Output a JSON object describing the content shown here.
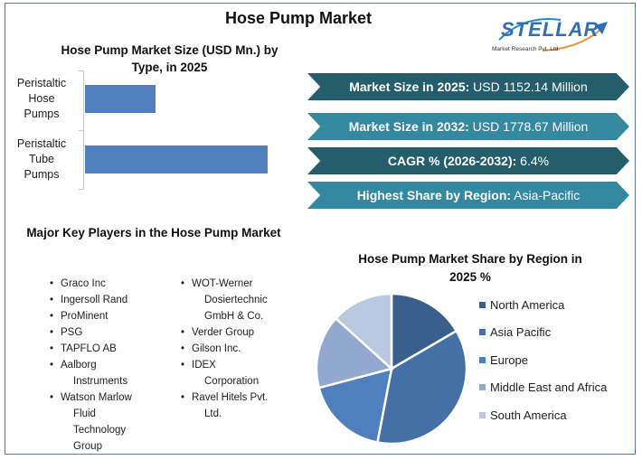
{
  "title": "Hose Pump Market",
  "logo": {
    "word": "STELLAR",
    "subtitle": "Market Research Pvt. Ltd.",
    "icon": "rising-arrow-icon"
  },
  "bar_chart": {
    "title_line1": "Hose Pump Market Size (USD Mn.) by",
    "title_line2": "Type, in 2025",
    "categories": [
      {
        "line1": "Peristaltic",
        "line2": "Hose",
        "line3": "Pumps"
      },
      {
        "line1": "Peristaltic",
        "line2": "Tube",
        "line3": "Pumps"
      }
    ]
  },
  "stats": [
    {
      "label": "Market Size in 2025:",
      "value": " USD 1152.14 Million"
    },
    {
      "label": "Market Size in 2032:",
      "value": " USD 1778.67 Million"
    },
    {
      "label": "CAGR % (2026-2032):",
      "value": " 6.4%"
    },
    {
      "label": "Highest Share by Region:",
      "value": " Asia-Pacific"
    }
  ],
  "players": {
    "title": "Major Key Players in the Hose Pump Market",
    "col1": [
      {
        "l1": "Graco Inc"
      },
      {
        "l1": "Ingersoll Rand"
      },
      {
        "l1": "ProMinent"
      },
      {
        "l1": "PSG"
      },
      {
        "l1": "TAPFLO AB"
      },
      {
        "l1": "Aalborg",
        "l2": "Instruments"
      },
      {
        "l1": "Watson Marlow",
        "l2": "Fluid",
        "l3": "Technology",
        "l4": "Group"
      }
    ],
    "col2": [
      {
        "l1": "WOT-Werner",
        "l2": "Dosiertechnic",
        "l3": "GmbH & Co."
      },
      {
        "l1": "Verder Group"
      },
      {
        "l1": "Gilson Inc."
      },
      {
        "l1": "IDEX",
        "l2": "Corporation"
      },
      {
        "l1": "Ravel Hitels Pvt.",
        "l2": "Ltd."
      }
    ]
  },
  "pie_chart": {
    "title_line1": "Hose Pump Market Share by Region in",
    "title_line2": "2025 %",
    "legend": [
      {
        "name": "North America",
        "color": "#3b5f8c"
      },
      {
        "name": "Asia Pacific",
        "color": "#4570a6"
      },
      {
        "name": "Europe",
        "color": "#4f7fbc"
      },
      {
        "name": "Middle East and Africa",
        "color": "#93a8cf"
      },
      {
        "name": "South America",
        "color": "#bac8e0"
      }
    ]
  },
  "colors": {
    "banner_dark": "#245d6c",
    "banner_light": "#3488a0",
    "bar": "#4f7fbc",
    "frame": "#5b7fa6"
  },
  "chart_data": [
    {
      "type": "bar",
      "orientation": "horizontal",
      "title": "Hose Pump Market Size (USD Mn.) by Type, in 2025",
      "categories": [
        "Peristaltic Hose Pumps",
        "Peristaltic Tube Pumps"
      ],
      "values": [
        321,
        831
      ],
      "xlabel": "",
      "ylabel": "",
      "notes": "No value axis shown; values estimated from bar lengths (~28%/72%) scaled to total 1152.14",
      "grid": false
    },
    {
      "type": "pie",
      "title": "Hose Pump Market Share by Region in 2025 %",
      "categories": [
        "North America",
        "Asia Pacific",
        "Europe",
        "Middle East and Africa",
        "South America"
      ],
      "values": [
        16.6,
        36.4,
        17.9,
        15.8,
        13.3
      ],
      "legend_position": "right"
    }
  ]
}
